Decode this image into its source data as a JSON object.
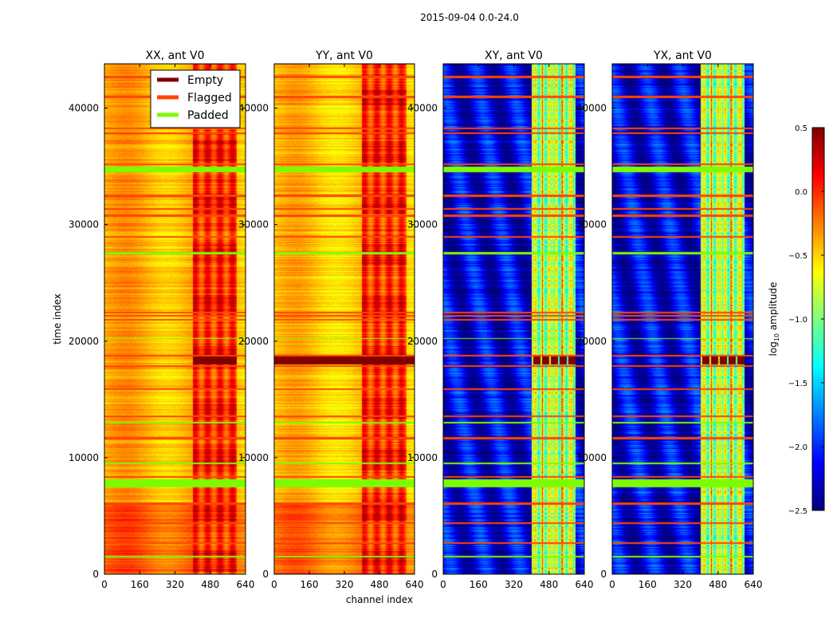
{
  "chart_data": {
    "type": "heatmap",
    "suptitle": "2015-09-04 0.0-24.0",
    "xlabel": "channel index",
    "ylabel": "time index",
    "xlim": [
      0,
      640
    ],
    "ylim": [
      0,
      43800
    ],
    "xticks": [
      "0",
      "160",
      "320",
      "480",
      "640"
    ],
    "yticks": [
      "0",
      "10000",
      "20000",
      "30000",
      "40000"
    ],
    "panels": [
      {
        "title": "XX, ant V0",
        "kind": "auto",
        "base": -0.4,
        "band": 0.05,
        "empty_channels": [
          400,
          600
        ]
      },
      {
        "title": "YY, ant V0",
        "kind": "auto",
        "base": -0.45,
        "band": 0.0,
        "empty_channels": [
          0,
          640
        ]
      },
      {
        "title": "XY, ant V0",
        "kind": "cross",
        "base": -2.2,
        "band": -0.9,
        "empty_channels": [
          400,
          600
        ]
      },
      {
        "title": "YX, ant V0",
        "kind": "cross",
        "base": -2.2,
        "band": -0.9,
        "empty_channels": [
          400,
          600
        ]
      }
    ],
    "high_amplitude_channels": [
      400,
      600
    ],
    "empty_time_range": [
      18000,
      18800
    ],
    "flagged_times": [
      42700,
      41000,
      38300,
      37900,
      35200,
      32500,
      31400,
      30800,
      29000,
      22500,
      22200,
      21850,
      18770,
      17880,
      15900,
      13600,
      11700,
      8400,
      6100,
      4400,
      2700
    ],
    "padded_time_ranges": [
      [
        7500,
        8200
      ],
      [
        34500,
        35000
      ],
      [
        27500,
        27700
      ],
      [
        20200,
        20300
      ],
      [
        13000,
        13100
      ],
      [
        9500,
        9600
      ],
      [
        1500,
        1600
      ]
    ],
    "legend": {
      "position": "upper-right of first panel",
      "entries": [
        {
          "label": "Empty",
          "color": "#800000"
        },
        {
          "label": "Flagged",
          "color": "#ff4500"
        },
        {
          "label": "Padded",
          "color": "#7cfc00"
        }
      ]
    },
    "colorbar": {
      "label_prefix": "log",
      "label_sub": "10",
      "label_suffix": " amplitude",
      "range": [
        -2.5,
        0.5
      ],
      "ticks": [
        "0.5",
        "0.0",
        "−0.5",
        "−1.0",
        "−1.5",
        "−2.0",
        "−2.5"
      ],
      "colormap": "jet"
    }
  }
}
